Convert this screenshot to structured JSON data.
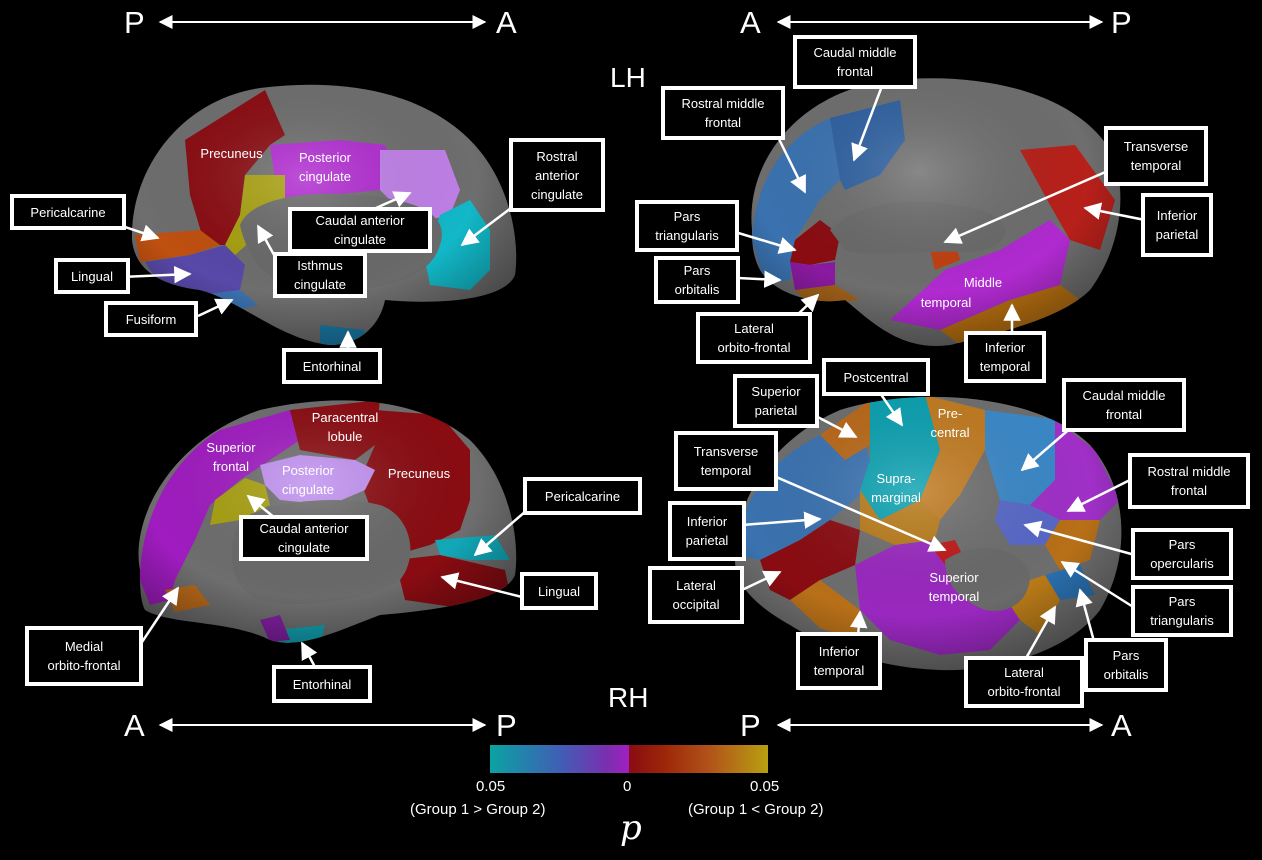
{
  "hemispheres": {
    "left": "LH",
    "right": "RH"
  },
  "orientation": {
    "top_left": {
      "start": "P",
      "end": "A"
    },
    "top_right": {
      "start": "A",
      "end": "P"
    },
    "bottom_left": {
      "start": "A",
      "end": "P"
    },
    "bottom_right": {
      "start": "P",
      "end": "A"
    }
  },
  "colorbar": {
    "colors": [
      "#0aa3a3",
      "#3f5fb5",
      "#7a2fb0",
      "#a020c0",
      "#8a0c12",
      "#9c2408",
      "#b2561a",
      "#b8a010"
    ],
    "tick_left": "0.05",
    "tick_mid": "0",
    "tick_right": "0.05",
    "note_left": "(Group 1 > Group 2)",
    "note_right": "(Group 1 < Group 2)",
    "variable": "p"
  },
  "region_colors": {
    "cortex": "#6e6e6e",
    "dark_red": "#8a0c12",
    "magenta": "#b02ad0",
    "light_purple": "#c080e8",
    "olive": "#a8a010",
    "cyan": "#12b8c8",
    "teal": "#0a9aa8",
    "blue_purple": "#5848a8",
    "steel_blue": "#3a72b0",
    "orange": "#c06818",
    "red": "#b8201a",
    "purple": "#8a2aa8"
  },
  "lh_medial": {
    "boxes": {
      "pericalcarine": "Pericalcarine",
      "lingual": "Lingual",
      "fusiform": "Fusiform",
      "entorhinal": "Entorhinal",
      "isthmus": "Isthmus\ncingulate",
      "caudal_anterior": "Caudal anterior\ncingulate",
      "rostral_anterior": "Rostral\nanterior\ncingulate"
    },
    "inline": {
      "precuneus": "Precuneus",
      "posterior_cingulate": "Posterior\ncingulate"
    }
  },
  "lh_lateral": {
    "boxes": {
      "caudal_middle_frontal": "Caudal middle\nfrontal",
      "rostral_middle_frontal": "Rostral middle\nfrontal",
      "pars_triangularis": "Pars\ntriangularis",
      "pars_orbitalis": "Pars\norbitalis",
      "lateral_orbito_frontal": "Lateral\norbito-frontal",
      "transverse_temporal": "Transverse\ntemporal",
      "inferior_parietal": "Inferior\nparietal",
      "inferior_temporal": "Inferior\ntemporal"
    },
    "inline": {
      "middle_temporal_1": "Middle",
      "middle_temporal_2": "temporal"
    }
  },
  "rh_medial": {
    "boxes": {
      "caudal_anterior": "Caudal anterior\ncingulate",
      "pericalcarine": "Pericalcarine",
      "lingual": "Lingual",
      "medial_orbito_frontal": "Medial\norbito-frontal",
      "entorhinal": "Entorhinal"
    },
    "inline": {
      "superior_frontal": "Superior\nfrontal",
      "paracentral": "Paracentral\nlobule",
      "posterior_cingulate": "Posterior\ncingulate",
      "precuneus": "Precuneus"
    }
  },
  "rh_lateral": {
    "boxes": {
      "superior_parietal": "Superior\nparietal",
      "postcentral": "Postcentral",
      "caudal_middle_frontal": "Caudal middle\nfrontal",
      "transverse_temporal": "Transverse\ntemporal",
      "rostral_middle_frontal": "Rostral middle\nfrontal",
      "inferior_parietal": "Inferior\nparietal",
      "pars_opercularis": "Pars\nopercularis",
      "lateral_occipital": "Lateral\noccipital",
      "pars_triangularis": "Pars\ntriangularis",
      "inferior_temporal": "Inferior\ntemporal",
      "pars_orbitalis": "Pars\norbitalis",
      "lateral_orbito_frontal": "Lateral\norbito-frontal"
    },
    "inline": {
      "precentral": "Pre-\ncentral",
      "supramarginal": "Supra-\nmarginal",
      "superior_temporal": "Superior\ntemporal"
    }
  }
}
